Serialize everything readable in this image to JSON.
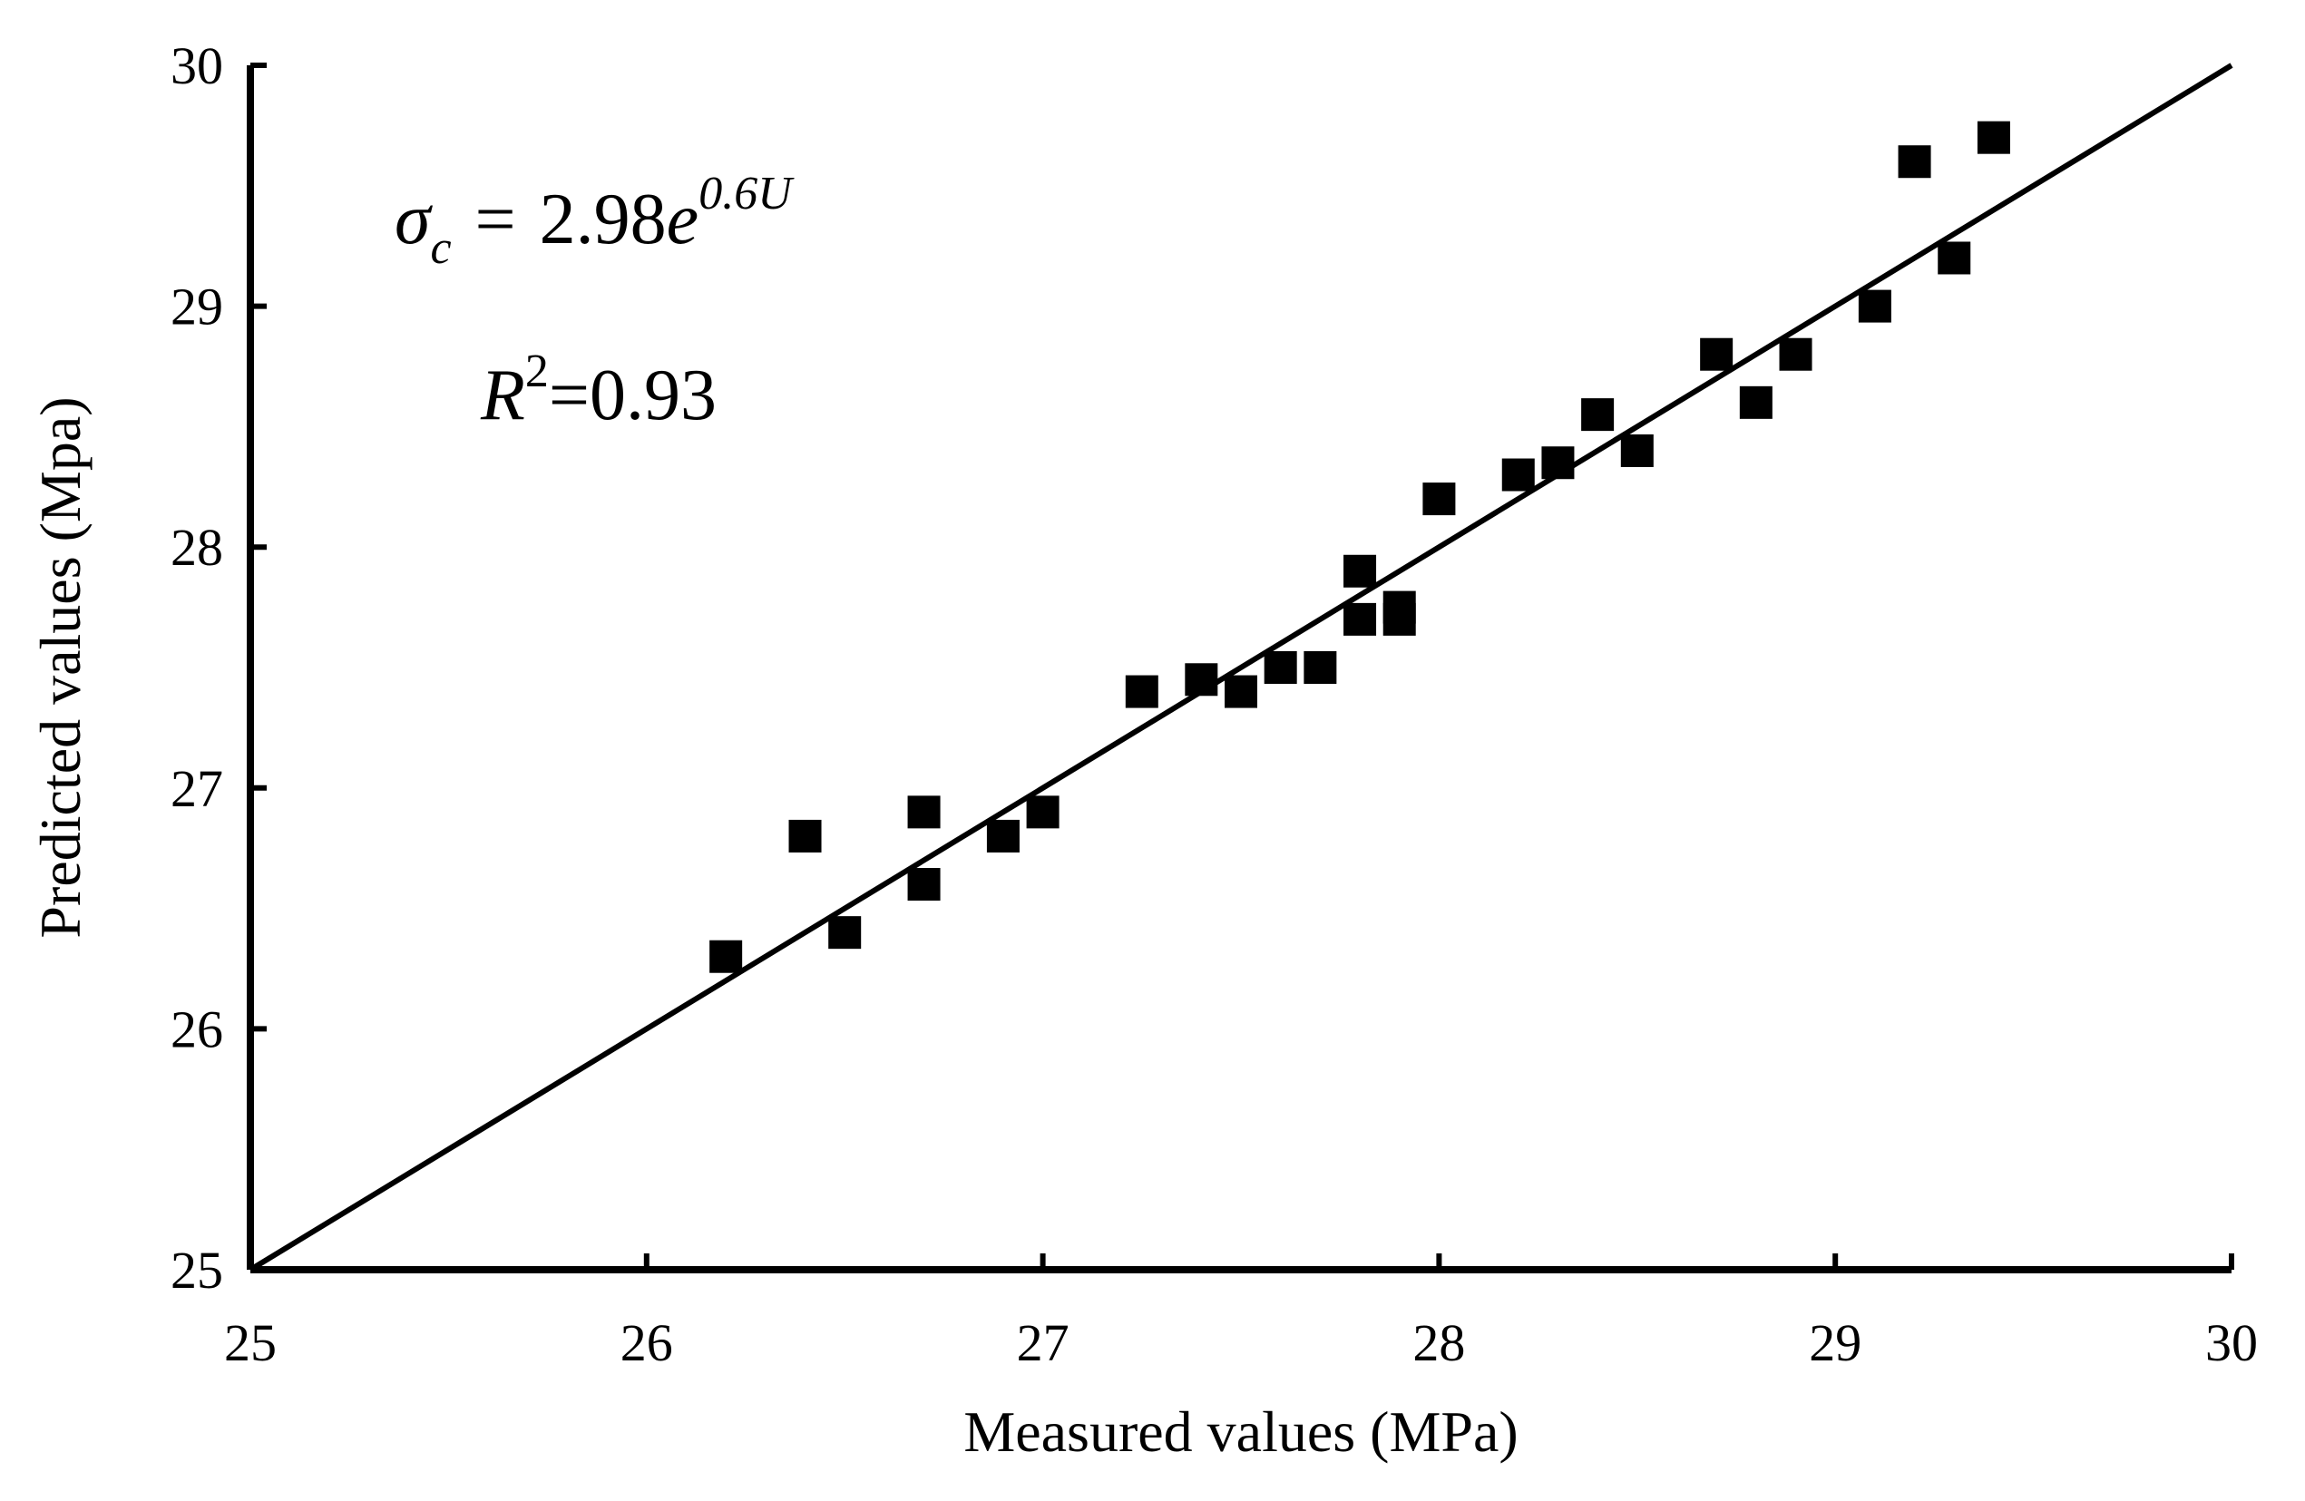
{
  "chart_data": {
    "type": "scatter",
    "title": "",
    "xlabel": "Measured values (MPa)",
    "ylabel": "Predicted values (Mpa)",
    "xlim": [
      25,
      30
    ],
    "ylim": [
      25,
      30
    ],
    "xticks": [
      "25",
      "26",
      "27",
      "28",
      "29",
      "30"
    ],
    "yticks": [
      "25",
      "26",
      "27",
      "28",
      "29",
      "30"
    ],
    "grid": false,
    "marker": "square",
    "marker_color": "#000000",
    "series": [
      {
        "name": "data",
        "points": [
          {
            "x": 26.2,
            "y": 26.3
          },
          {
            "x": 26.4,
            "y": 26.8
          },
          {
            "x": 26.5,
            "y": 26.4
          },
          {
            "x": 26.7,
            "y": 26.9
          },
          {
            "x": 26.7,
            "y": 26.6
          },
          {
            "x": 26.9,
            "y": 26.8
          },
          {
            "x": 27.0,
            "y": 26.9
          },
          {
            "x": 27.25,
            "y": 27.4
          },
          {
            "x": 27.4,
            "y": 27.45
          },
          {
            "x": 27.5,
            "y": 27.4
          },
          {
            "x": 27.6,
            "y": 27.5
          },
          {
            "x": 27.7,
            "y": 27.5
          },
          {
            "x": 27.8,
            "y": 27.9
          },
          {
            "x": 27.8,
            "y": 27.7
          },
          {
            "x": 27.9,
            "y": 27.75
          },
          {
            "x": 27.9,
            "y": 27.7
          },
          {
            "x": 28.0,
            "y": 28.2
          },
          {
            "x": 28.2,
            "y": 28.3
          },
          {
            "x": 28.3,
            "y": 28.35
          },
          {
            "x": 28.4,
            "y": 28.55
          },
          {
            "x": 28.5,
            "y": 28.4
          },
          {
            "x": 28.7,
            "y": 28.8
          },
          {
            "x": 28.8,
            "y": 28.6
          },
          {
            "x": 28.9,
            "y": 28.8
          },
          {
            "x": 29.1,
            "y": 29.0
          },
          {
            "x": 29.2,
            "y": 29.6
          },
          {
            "x": 29.3,
            "y": 29.2
          },
          {
            "x": 29.4,
            "y": 29.7
          }
        ]
      }
    ],
    "reference_line": {
      "name": "y = x",
      "x": [
        25,
        30
      ],
      "y": [
        25,
        30
      ]
    },
    "annotations": {
      "equation": {
        "sigma": "σ",
        "sub": "c",
        "equals": "=",
        "coef": "2.98",
        "base": "e",
        "exponent": "0.6U"
      },
      "r_squared": {
        "symbol": "R",
        "power": "2",
        "value": "=0.93"
      }
    }
  }
}
